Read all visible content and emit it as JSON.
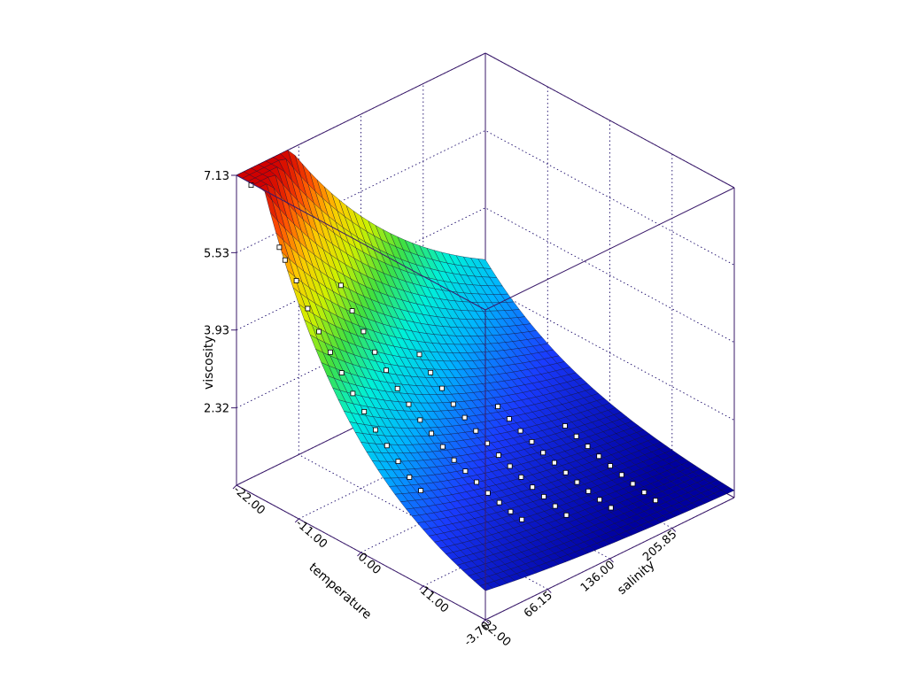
{
  "chart_data": {
    "type": "surface",
    "title": "",
    "xlabel": "temperature",
    "ylabel": "salinity",
    "zlabel": "viscosity",
    "x_ticks": [
      "-22.00",
      "-11.00",
      "0.00",
      "11.00",
      "22.00"
    ],
    "y_ticks": [
      "-3.70",
      "66.15",
      "136.00",
      "205.85"
    ],
    "z_ticks": [
      "2.32",
      "3.93",
      "5.53",
      "7.13"
    ],
    "xlim": [
      -22,
      22
    ],
    "ylim": [
      -3.7,
      275.7
    ],
    "zlim": [
      0.72,
      7.13
    ],
    "colormap": [
      "#0000a0",
      "#1a3cff",
      "#00b4ff",
      "#00f0d8",
      "#40e040",
      "#d0f000",
      "#ffc800",
      "#ff5000",
      "#d00000"
    ],
    "grid": true,
    "observed_points": [
      {
        "temperature": -20,
        "salinity": 0,
        "viscosity": 7.02
      },
      {
        "temperature": -15,
        "salinity": 0,
        "viscosity": 6.05
      },
      {
        "temperature": -14,
        "salinity": 0,
        "viscosity": 5.85
      },
      {
        "temperature": -12,
        "salinity": 0,
        "viscosity": 5.55
      },
      {
        "temperature": -10,
        "salinity": 0,
        "viscosity": 5.1
      },
      {
        "temperature": -8,
        "salinity": 0,
        "viscosity": 4.75
      },
      {
        "temperature": -6,
        "salinity": 0,
        "viscosity": 4.45
      },
      {
        "temperature": -4,
        "salinity": 0,
        "viscosity": 4.15
      },
      {
        "temperature": -2,
        "salinity": 0,
        "viscosity": 3.85
      },
      {
        "temperature": 0,
        "salinity": 0,
        "viscosity": 3.6
      },
      {
        "temperature": 2,
        "salinity": 0,
        "viscosity": 3.35
      },
      {
        "temperature": 4,
        "salinity": 0,
        "viscosity": 3.15
      },
      {
        "temperature": 6,
        "salinity": 0,
        "viscosity": 2.95
      },
      {
        "temperature": 8,
        "salinity": 0,
        "viscosity": 2.75
      },
      {
        "temperature": 10,
        "salinity": 0,
        "viscosity": 2.6
      },
      {
        "temperature": -12,
        "salinity": 50,
        "viscosity": 5.0
      },
      {
        "temperature": -10,
        "salinity": 50,
        "viscosity": 4.6
      },
      {
        "temperature": -8,
        "salinity": 50,
        "viscosity": 4.3
      },
      {
        "temperature": -6,
        "salinity": 50,
        "viscosity": 4.0
      },
      {
        "temperature": -4,
        "salinity": 50,
        "viscosity": 3.75
      },
      {
        "temperature": -2,
        "salinity": 50,
        "viscosity": 3.5
      },
      {
        "temperature": 0,
        "salinity": 50,
        "viscosity": 3.3
      },
      {
        "temperature": 2,
        "salinity": 50,
        "viscosity": 3.1
      },
      {
        "temperature": 4,
        "salinity": 50,
        "viscosity": 2.95
      },
      {
        "temperature": 6,
        "salinity": 50,
        "viscosity": 2.8
      },
      {
        "temperature": 8,
        "salinity": 50,
        "viscosity": 2.65
      },
      {
        "temperature": 10,
        "salinity": 50,
        "viscosity": 2.55
      },
      {
        "temperature": 12,
        "salinity": 50,
        "viscosity": 2.45
      },
      {
        "temperature": 14,
        "salinity": 50,
        "viscosity": 2.35
      },
      {
        "temperature": 16,
        "salinity": 50,
        "viscosity": 2.28
      },
      {
        "temperature": 18,
        "salinity": 50,
        "viscosity": 2.22
      },
      {
        "temperature": 20,
        "salinity": 50,
        "viscosity": 2.18
      },
      {
        "temperature": -6,
        "salinity": 100,
        "viscosity": 3.5
      },
      {
        "temperature": -4,
        "salinity": 100,
        "viscosity": 3.25
      },
      {
        "temperature": -2,
        "salinity": 100,
        "viscosity": 3.05
      },
      {
        "temperature": 0,
        "salinity": 100,
        "viscosity": 2.85
      },
      {
        "temperature": 2,
        "salinity": 100,
        "viscosity": 2.7
      },
      {
        "temperature": 4,
        "salinity": 100,
        "viscosity": 2.55
      },
      {
        "temperature": 6,
        "salinity": 100,
        "viscosity": 2.42
      },
      {
        "temperature": 8,
        "salinity": 100,
        "viscosity": 2.3
      },
      {
        "temperature": 10,
        "salinity": 100,
        "viscosity": 2.2
      },
      {
        "temperature": 12,
        "salinity": 100,
        "viscosity": 2.1
      },
      {
        "temperature": 14,
        "salinity": 100,
        "viscosity": 2.02
      },
      {
        "temperature": 16,
        "salinity": 100,
        "viscosity": 1.95
      },
      {
        "temperature": 18,
        "salinity": 100,
        "viscosity": 1.88
      },
      {
        "temperature": 20,
        "salinity": 100,
        "viscosity": 1.82
      },
      {
        "temperature": 0,
        "salinity": 150,
        "viscosity": 2.35
      },
      {
        "temperature": 2,
        "salinity": 150,
        "viscosity": 2.22
      },
      {
        "temperature": 4,
        "salinity": 150,
        "viscosity": 2.1
      },
      {
        "temperature": 6,
        "salinity": 150,
        "viscosity": 2.0
      },
      {
        "temperature": 8,
        "salinity": 150,
        "viscosity": 1.9
      },
      {
        "temperature": 10,
        "salinity": 150,
        "viscosity": 1.82
      },
      {
        "temperature": 12,
        "salinity": 150,
        "viscosity": 1.74
      },
      {
        "temperature": 14,
        "salinity": 150,
        "viscosity": 1.67
      },
      {
        "temperature": 16,
        "salinity": 150,
        "viscosity": 1.61
      },
      {
        "temperature": 18,
        "salinity": 150,
        "viscosity": 1.56
      },
      {
        "temperature": 20,
        "salinity": 150,
        "viscosity": 1.52
      },
      {
        "temperature": 4,
        "salinity": 200,
        "viscosity": 1.75
      },
      {
        "temperature": 6,
        "salinity": 200,
        "viscosity": 1.66
      },
      {
        "temperature": 8,
        "salinity": 200,
        "viscosity": 1.58
      },
      {
        "temperature": 10,
        "salinity": 200,
        "viscosity": 1.5
      },
      {
        "temperature": 12,
        "salinity": 200,
        "viscosity": 1.43
      },
      {
        "temperature": 14,
        "salinity": 200,
        "viscosity": 1.37
      },
      {
        "temperature": 16,
        "salinity": 200,
        "viscosity": 1.31
      },
      {
        "temperature": 18,
        "salinity": 200,
        "viscosity": 1.26
      },
      {
        "temperature": 20,
        "salinity": 200,
        "viscosity": 1.22
      }
    ]
  }
}
